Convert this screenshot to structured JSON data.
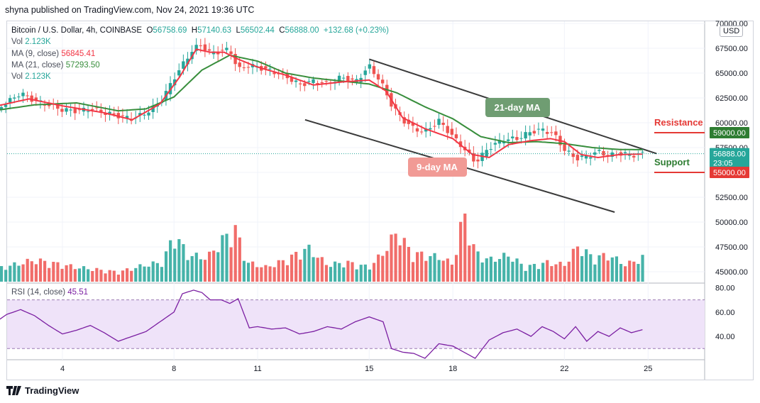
{
  "header": {
    "publisher": "shyna published on TradingView.com, Nov 24, 2021 19:36 UTC"
  },
  "legend": {
    "symbol": "Bitcoin / U.S. Dollar, 4h, COINBASE",
    "open_label": "O",
    "open": "56758.69",
    "high_label": "H",
    "high": "57140.63",
    "low_label": "L",
    "low": "56502.44",
    "close_label": "C",
    "close": "56888.00",
    "change": "+132.68 (+0.23%)",
    "vol_label": "Vol",
    "vol_value": "2.123K",
    "ma9_label": "MA (9, close)",
    "ma9_value": "56845.41",
    "ma21_label": "MA (21, close)",
    "ma21_value": "57293.50",
    "vol2_label": "Vol",
    "vol2_value": "2.123K"
  },
  "currency_badge": "USD",
  "footer": {
    "brand": "TradingView"
  },
  "colors": {
    "up": "#26a69a",
    "down": "#ef5350",
    "ma9": "#f23645",
    "ma21": "#388e3c",
    "rsi": "#7b1fa2",
    "rsi_band": "#efe3f9",
    "channel": "#3a3a3a",
    "resistance": "#e53935",
    "support": "#2e7d32"
  },
  "chart_data": {
    "type": "candlestick",
    "symbol": "Bitcoin / U.S. Dollar",
    "timeframe": "4h",
    "x_ticks": [
      "4",
      "8",
      "11",
      "15",
      "18",
      "22",
      "25"
    ],
    "price_axis": {
      "ticks": [
        "70000.00",
        "67500.00",
        "65000.00",
        "62500.00",
        "60000.00",
        "57500.00",
        "55000.00",
        "52500.00",
        "50000.00",
        "47500.00",
        "45000.00"
      ],
      "range": [
        44000,
        70000
      ]
    },
    "price_tags": {
      "resistance": "59000.00",
      "current": "56888.00",
      "countdown": "23:05",
      "support": "55000.00"
    },
    "annotations": {
      "ma21_label": "21-day MA",
      "ma9_label": "9-day MA",
      "resistance_label": "Resistance",
      "support_label": "Support"
    },
    "levels": {
      "resistance": 59000,
      "support": 55000
    },
    "channel": {
      "upper": [
        [
          15,
          66400
        ],
        [
          25.3,
          56900
        ]
      ],
      "lower": [
        [
          12.7,
          60300
        ],
        [
          23.8,
          51000
        ]
      ]
    },
    "ma_anchors": {
      "ma9": [
        [
          1.5,
          61600
        ],
        [
          2.8,
          62400
        ],
        [
          4,
          61700
        ],
        [
          5.5,
          61000
        ],
        [
          6.5,
          60300
        ],
        [
          7.5,
          61900
        ],
        [
          8.2,
          64600
        ],
        [
          8.8,
          67400
        ],
        [
          9.3,
          67100
        ],
        [
          9.8,
          67100
        ],
        [
          10.3,
          66400
        ],
        [
          11,
          65600
        ],
        [
          12,
          64800
        ],
        [
          13,
          63800
        ],
        [
          14,
          64100
        ],
        [
          15,
          64300
        ],
        [
          15.6,
          63200
        ],
        [
          16.2,
          60500
        ],
        [
          17,
          59400
        ],
        [
          18,
          58400
        ],
        [
          18.7,
          56800
        ],
        [
          19.3,
          56500
        ],
        [
          20,
          57800
        ],
        [
          20.8,
          58200
        ],
        [
          21.5,
          58400
        ],
        [
          22,
          58100
        ],
        [
          22.6,
          56800
        ],
        [
          23.2,
          56500
        ],
        [
          24,
          56800
        ],
        [
          24.8,
          56850
        ]
      ],
      "ma21": [
        [
          1.5,
          61200
        ],
        [
          3,
          61800
        ],
        [
          4.5,
          62000
        ],
        [
          6,
          61200
        ],
        [
          7,
          61400
        ],
        [
          8,
          62600
        ],
        [
          9,
          65300
        ],
        [
          10,
          66800
        ],
        [
          11,
          66200
        ],
        [
          12,
          65000
        ],
        [
          13,
          64500
        ],
        [
          14,
          64200
        ],
        [
          15,
          63900
        ],
        [
          16,
          63000
        ],
        [
          17,
          61600
        ],
        [
          18,
          60400
        ],
        [
          19,
          58600
        ],
        [
          20,
          58000
        ],
        [
          21,
          58100
        ],
        [
          22,
          57900
        ],
        [
          23,
          57500
        ],
        [
          24,
          57300
        ],
        [
          24.8,
          57293
        ]
      ]
    },
    "candle_anchors": [
      [
        1.5,
        61300
      ],
      [
        2,
        62000
      ],
      [
        2.5,
        63000
      ],
      [
        3,
        62200
      ],
      [
        3.5,
        61800
      ],
      [
        4,
        61300
      ],
      [
        4.5,
        61200
      ],
      [
        5,
        61400
      ],
      [
        5.5,
        61000
      ],
      [
        6,
        60700
      ],
      [
        6.5,
        60400
      ],
      [
        7,
        61000
      ],
      [
        7.5,
        62000
      ],
      [
        8,
        64500
      ],
      [
        8.3,
        65800
      ],
      [
        8.7,
        67500
      ],
      [
        9,
        67800
      ],
      [
        9.3,
        67000
      ],
      [
        9.7,
        67200
      ],
      [
        10,
        67400
      ],
      [
        10.3,
        65300
      ],
      [
        10.7,
        65800
      ],
      [
        11,
        65600
      ],
      [
        11.5,
        65200
      ],
      [
        12,
        64700
      ],
      [
        12.5,
        63800
      ],
      [
        13,
        64200
      ],
      [
        13.5,
        63900
      ],
      [
        14,
        64600
      ],
      [
        14.5,
        64100
      ],
      [
        15,
        65700
      ],
      [
        15.4,
        64200
      ],
      [
        15.8,
        61800
      ],
      [
        16.2,
        60300
      ],
      [
        16.6,
        59400
      ],
      [
        17,
        59100
      ],
      [
        17.5,
        60200
      ],
      [
        18,
        58600
      ],
      [
        18.4,
        57400
      ],
      [
        18.8,
        56000
      ],
      [
        19.3,
        57500
      ],
      [
        19.8,
        58300
      ],
      [
        20.3,
        58400
      ],
      [
        20.8,
        59100
      ],
      [
        21.2,
        59300
      ],
      [
        21.6,
        58900
      ],
      [
        22,
        57300
      ],
      [
        22.4,
        56400
      ],
      [
        22.8,
        56600
      ],
      [
        23.2,
        57100
      ],
      [
        23.6,
        56700
      ],
      [
        24,
        56900
      ],
      [
        24.5,
        56750
      ],
      [
        24.8,
        56888
      ]
    ],
    "volume_anchors": [
      [
        1.5,
        0.25
      ],
      [
        3,
        0.45
      ],
      [
        4.5,
        0.3
      ],
      [
        6,
        0.2
      ],
      [
        7,
        0.35
      ],
      [
        7.6,
        0.4
      ],
      [
        8,
        1.0
      ],
      [
        8.5,
        0.55
      ],
      [
        9.2,
        0.5
      ],
      [
        9.7,
        0.85
      ],
      [
        10.2,
        1.1
      ],
      [
        10.6,
        0.4
      ],
      [
        11.3,
        0.3
      ],
      [
        12,
        0.45
      ],
      [
        12.8,
        0.7
      ],
      [
        13.5,
        0.35
      ],
      [
        14.2,
        0.4
      ],
      [
        15,
        0.3
      ],
      [
        15.5,
        0.6
      ],
      [
        16,
        1.05
      ],
      [
        16.5,
        0.6
      ],
      [
        17,
        0.55
      ],
      [
        17.6,
        0.5
      ],
      [
        18,
        0.35
      ],
      [
        18.4,
        1.45
      ],
      [
        18.8,
        0.6
      ],
      [
        19.3,
        0.45
      ],
      [
        20,
        0.55
      ],
      [
        20.6,
        0.3
      ],
      [
        21.4,
        0.4
      ],
      [
        22,
        0.35
      ],
      [
        22.5,
        0.75
      ],
      [
        23,
        0.5
      ],
      [
        23.6,
        0.55
      ],
      [
        24.2,
        0.35
      ],
      [
        24.8,
        0.5
      ]
    ],
    "rsi": {
      "label": "RSI (14, close)",
      "value": "45.51",
      "axis_ticks": [
        "80.00",
        "60.00",
        "40.00"
      ],
      "range": [
        22,
        82
      ],
      "bands": [
        30,
        70
      ],
      "anchors": [
        [
          1.5,
          50
        ],
        [
          2,
          58
        ],
        [
          2.5,
          62
        ],
        [
          3,
          57
        ],
        [
          3.5,
          49
        ],
        [
          4,
          42
        ],
        [
          4.5,
          45
        ],
        [
          5,
          49
        ],
        [
          5.5,
          43
        ],
        [
          6,
          36
        ],
        [
          6.5,
          40
        ],
        [
          7,
          44
        ],
        [
          7.5,
          52
        ],
        [
          8,
          60
        ],
        [
          8.3,
          75
        ],
        [
          8.7,
          78
        ],
        [
          9,
          76
        ],
        [
          9.3,
          70
        ],
        [
          9.7,
          70
        ],
        [
          10,
          67
        ],
        [
          10.3,
          71
        ],
        [
          10.7,
          47
        ],
        [
          11,
          48
        ],
        [
          11.5,
          46
        ],
        [
          12,
          47
        ],
        [
          12.5,
          42
        ],
        [
          13,
          44
        ],
        [
          13.5,
          48
        ],
        [
          14,
          46
        ],
        [
          14.5,
          52
        ],
        [
          15,
          56
        ],
        [
          15.5,
          52
        ],
        [
          15.8,
          30
        ],
        [
          16.2,
          27
        ],
        [
          16.6,
          26
        ],
        [
          17,
          22
        ],
        [
          17.5,
          34
        ],
        [
          18,
          32
        ],
        [
          18.4,
          27
        ],
        [
          18.8,
          22
        ],
        [
          19.3,
          37
        ],
        [
          19.8,
          43
        ],
        [
          20.3,
          46
        ],
        [
          20.8,
          40
        ],
        [
          21.2,
          48
        ],
        [
          21.6,
          44
        ],
        [
          22,
          38
        ],
        [
          22.4,
          48
        ],
        [
          22.8,
          36
        ],
        [
          23.2,
          44
        ],
        [
          23.6,
          40
        ],
        [
          24,
          47
        ],
        [
          24.4,
          43
        ],
        [
          24.8,
          45.51
        ]
      ]
    }
  }
}
